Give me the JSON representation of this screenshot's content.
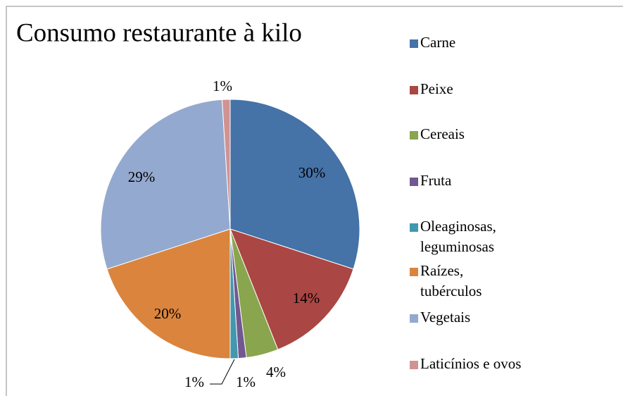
{
  "chart_data": {
    "type": "pie",
    "title": "Consumo restaurante à kilo",
    "categories": [
      "Carne",
      "Peixe",
      "Cereais",
      "Fruta",
      "Oleaginosas, leguminosas",
      "Raízes, tubérculos",
      "Vegetais",
      "Laticínios e ovos"
    ],
    "values": [
      30,
      14,
      4,
      1,
      1,
      20,
      29,
      1
    ],
    "value_labels": [
      "30%",
      "14%",
      "4%",
      "1%",
      "1%",
      "20%",
      "29%",
      "1%"
    ],
    "colors": [
      "#4572a7",
      "#aa4643",
      "#89a54e",
      "#71588f",
      "#4198af",
      "#db843d",
      "#93a9cf",
      "#d19392"
    ],
    "legend": "right"
  }
}
